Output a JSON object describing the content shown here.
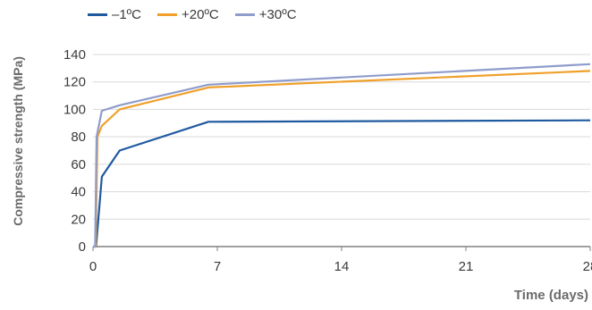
{
  "chart_data": {
    "type": "line",
    "xlabel": "Time (days)",
    "ylabel": "Compressive strength (MPa)",
    "xlim": [
      0,
      28
    ],
    "ylim": [
      0,
      140
    ],
    "xticks": [
      0,
      7,
      14,
      21,
      28
    ],
    "yticks": [
      0,
      20,
      40,
      60,
      80,
      100,
      120,
      140
    ],
    "grid": "horizontal",
    "legend_position": "top",
    "series": [
      {
        "name": "–1ºC",
        "color": "#1f5aa0",
        "x": [
          0,
          0.17,
          0.5,
          1.5,
          6.5,
          28
        ],
        "y": [
          0,
          0,
          51,
          70,
          91,
          92
        ]
      },
      {
        "name": "+20ºC",
        "color": "#f0a02a",
        "x": [
          0,
          0.15,
          0.25,
          0.5,
          1.5,
          6.5,
          28
        ],
        "y": [
          0,
          0,
          80,
          88,
          100,
          116,
          128
        ]
      },
      {
        "name": "+30ºC",
        "color": "#8f9ccc",
        "x": [
          0,
          0.12,
          0.2,
          0.5,
          1.5,
          6.5,
          28
        ],
        "y": [
          0,
          0,
          80,
          99,
          103,
          118,
          133
        ]
      }
    ]
  }
}
